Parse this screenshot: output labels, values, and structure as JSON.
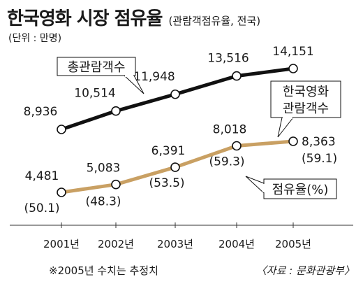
{
  "title": "한국영화 시장 점유율",
  "subtitle": "(관람객점유율, 전국)",
  "unit": "(단위 : 만명)",
  "footnote": "※2005년 수치는 추정치",
  "source": "〈자료 : 문화관광부〉",
  "chart_data": {
    "type": "line",
    "x": [
      "2001년",
      "2002년",
      "2003년",
      "2004년",
      "2005년"
    ],
    "series": [
      {
        "name": "총관람객수",
        "values": [
          8936,
          10514,
          11948,
          13516,
          14151
        ],
        "labels": [
          "8,936",
          "10,514",
          "11,948",
          "13,516",
          "14,151"
        ],
        "color": "#111111"
      },
      {
        "name": "한국영화 관람객수",
        "values": [
          4481,
          5083,
          6391,
          8018,
          8363
        ],
        "labels": [
          "4,481",
          "5,083",
          "6,391",
          "8,018",
          "8,363"
        ],
        "share_labels": [
          "(50.1)",
          "(48.3)",
          "(53.5)",
          "(59.3)",
          "(59.1)"
        ],
        "color": "#c9a063"
      }
    ],
    "callouts": {
      "total": "총관람객수",
      "korean_line1": "한국영화",
      "korean_line2": "관람객수",
      "share": "점유율(%)"
    },
    "grid": false
  }
}
